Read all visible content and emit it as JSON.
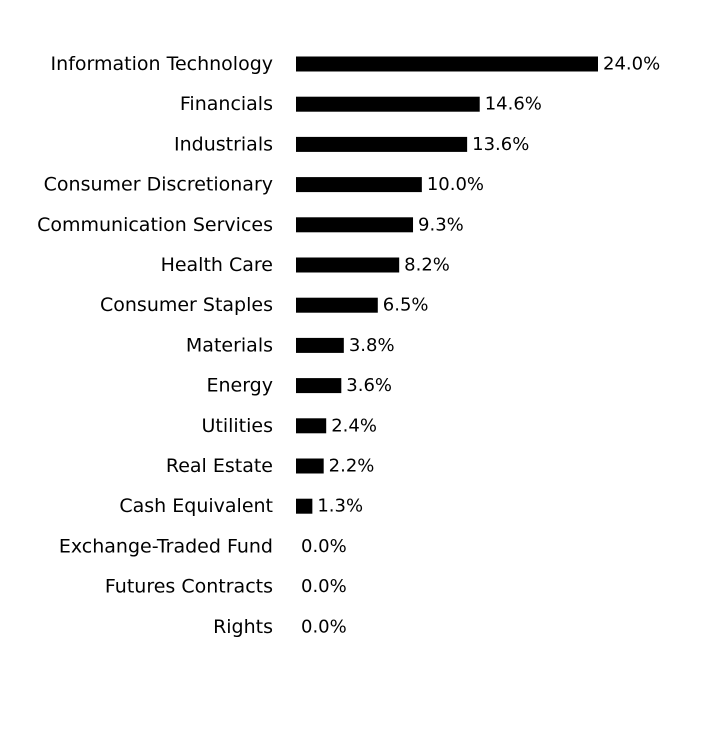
{
  "chart_data": {
    "type": "bar",
    "orientation": "horizontal",
    "categories": [
      "Information Technology",
      "Financials",
      "Industrials",
      "Consumer Discretionary",
      "Communication Services",
      "Health Care",
      "Consumer Staples",
      "Materials",
      "Energy",
      "Utilities",
      "Real Estate",
      "Cash Equivalent",
      "Exchange-Traded Fund",
      "Futures Contracts",
      "Rights"
    ],
    "values": [
      24.0,
      14.6,
      13.6,
      10.0,
      9.3,
      8.2,
      6.5,
      3.8,
      3.6,
      2.4,
      2.2,
      1.3,
      0.0,
      0.0,
      0.0
    ],
    "value_labels": [
      "24.0%",
      "14.6%",
      "13.6%",
      "10.0%",
      "9.3%",
      "8.2%",
      "6.5%",
      "3.8%",
      "3.6%",
      "2.4%",
      "2.2%",
      "1.3%",
      "0.0%",
      "0.0%",
      "0.0%"
    ],
    "unit": "%",
    "title": "",
    "xlabel": "",
    "ylabel": "",
    "xlim": [
      0,
      24.0
    ],
    "grid": false,
    "legend": "none",
    "bar_color": "#000000"
  }
}
